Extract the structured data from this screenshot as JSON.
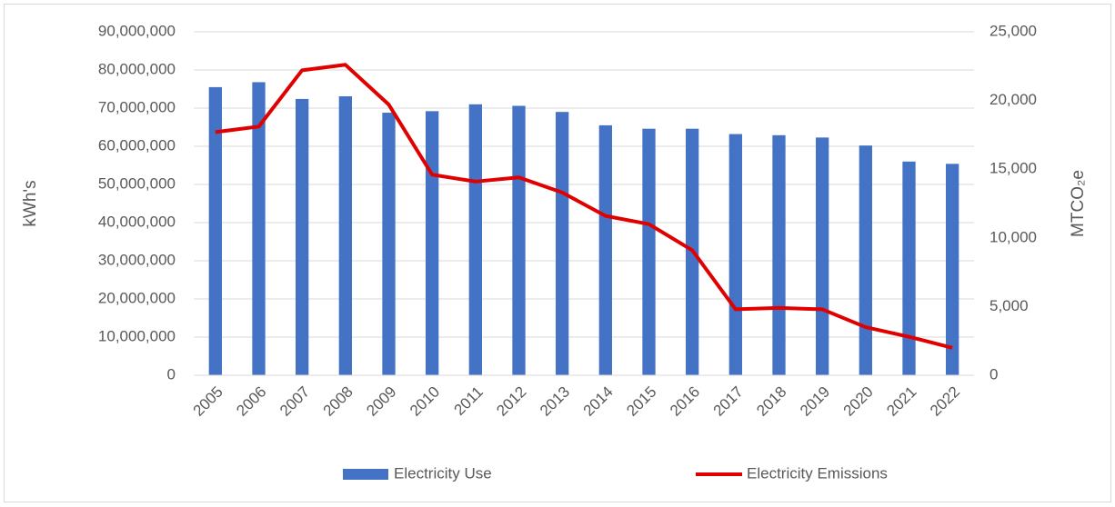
{
  "chart_data": {
    "type": "bar-line",
    "categories": [
      "2005",
      "2006",
      "2007",
      "2008",
      "2009",
      "2010",
      "2011",
      "2012",
      "2013",
      "2014",
      "2015",
      "2016",
      "2017",
      "2018",
      "2019",
      "2020",
      "2021",
      "2022"
    ],
    "ylabel": "kWh's",
    "y2label": "MTCO₂e",
    "ylim": [
      0,
      90000000
    ],
    "yticks": [
      0,
      {
        "value": 10000000,
        "label": "10,000,000"
      },
      {
        "value": 20000000,
        "label": "20,000,000"
      },
      {
        "value": 30000000,
        "label": "30,000,000"
      },
      {
        "value": 40000000,
        "label": "40,000,000"
      },
      {
        "value": 50000000,
        "label": "50,000,000"
      },
      {
        "value": 60000000,
        "label": "60,000,000"
      },
      {
        "value": 70000000,
        "label": "70,000,000"
      },
      {
        "value": 80000000,
        "label": "80,000,000"
      },
      {
        "value": 90000000,
        "label": "90,000,000"
      }
    ],
    "y2lim": [
      0,
      25000
    ],
    "y2ticks": [
      0,
      {
        "value": 5000,
        "label": "5,000"
      },
      {
        "value": 10000,
        "label": "10,000"
      },
      {
        "value": 15000,
        "label": "15,000"
      },
      {
        "value": 20000,
        "label": "20,000"
      },
      {
        "value": 25000,
        "label": "25,000"
      }
    ],
    "grid": true,
    "legend": "bottom",
    "series": [
      {
        "name": "Electricity Use",
        "type": "bar",
        "color": "#4472c4",
        "values": [
          75500000,
          76800000,
          72400000,
          73100000,
          68800000,
          69200000,
          71000000,
          70600000,
          69000000,
          65500000,
          64600000,
          64600000,
          63200000,
          62900000,
          62300000,
          60200000,
          56000000,
          55400000
        ]
      },
      {
        "name": "Electricity Emissions",
        "type": "line",
        "axis": "y2",
        "color": "#e00000",
        "values": [
          17700,
          18100,
          22200,
          22600,
          19700,
          14600,
          14100,
          14400,
          13300,
          11600,
          11000,
          9100,
          4800,
          4900,
          4800,
          3500,
          2800,
          2000
        ]
      }
    ]
  }
}
